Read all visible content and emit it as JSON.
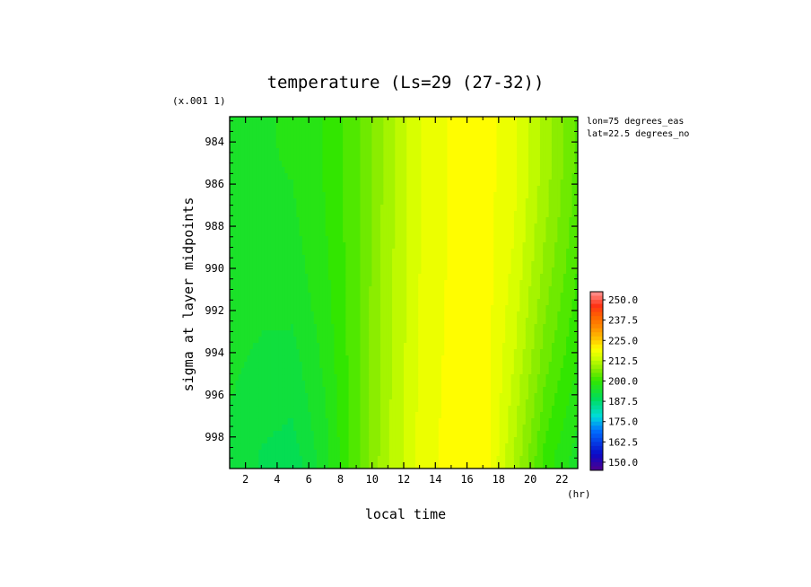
{
  "chart_data": {
    "type": "heatmap",
    "title": "temperature (Ls=29 (27-32))",
    "xlabel": "local time",
    "ylabel": "sigma at layer midpoints",
    "x_unit": "(hr)",
    "y_multiplier": "(x.001 1)",
    "x_ticks": [
      "2",
      "4",
      "6",
      "8",
      "10",
      "12",
      "14",
      "16",
      "18",
      "20",
      "22"
    ],
    "x_tick_values": [
      2,
      4,
      6,
      8,
      10,
      12,
      14,
      16,
      18,
      20,
      22
    ],
    "y_ticks": [
      "984",
      "986",
      "988",
      "990",
      "992",
      "994",
      "996",
      "998"
    ],
    "y_tick_values": [
      984,
      986,
      988,
      990,
      992,
      994,
      996,
      998
    ],
    "xlim": [
      1,
      23
    ],
    "ylim": [
      999.5,
      982.8
    ],
    "annotations": [
      "lon=75 degrees_eas",
      "lat=22.5 degrees_no"
    ],
    "colorbar": {
      "labels": [
        "250.0",
        "237.5",
        "225.0",
        "212.5",
        "200.0",
        "187.5",
        "175.0",
        "162.5",
        "150.0"
      ],
      "levels": [
        250,
        237.5,
        225,
        212.5,
        200,
        187.5,
        175,
        162.5,
        150
      ],
      "vmin": 145,
      "vmax": 255
    },
    "temperature_by_hour": {
      "hours": [
        1,
        3,
        5,
        7,
        9,
        11,
        13,
        15,
        17,
        19,
        21,
        23
      ],
      "sigma_984": [
        196,
        196,
        196.5,
        199,
        203,
        210,
        216,
        219,
        220,
        217,
        210,
        203
      ],
      "sigma_999": [
        193,
        191,
        190,
        195,
        203,
        211,
        217,
        220,
        221,
        211,
        200,
        195
      ]
    }
  }
}
